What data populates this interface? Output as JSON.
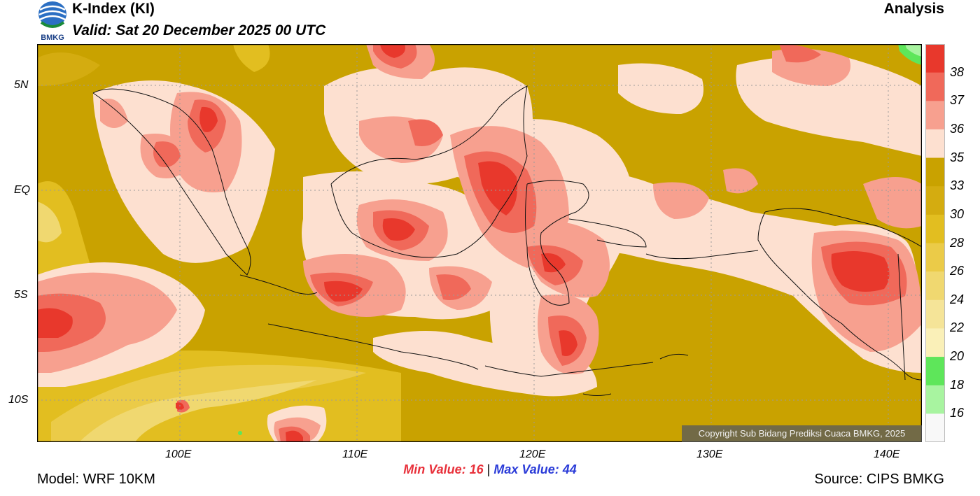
{
  "header": {
    "title": "K-Index (KI)",
    "valid": "Valid: Sat 20 December 2025 00 UTC",
    "analysis": "Analysis",
    "logo_text": "BMKG"
  },
  "map": {
    "lat_labels": [
      "5N",
      "EQ",
      "5S",
      "10S"
    ],
    "lon_labels": [
      "100E",
      "110E",
      "120E",
      "130E",
      "140E"
    ],
    "copyright": "Copyright Sub Bidang Prediksi Cuaca BMKG, 2025"
  },
  "stats": {
    "min_label": "Min Value:",
    "min_value": "16",
    "separator": "|",
    "max_label": "Max Value:",
    "max_value": "44"
  },
  "footer": {
    "model": "Model: WRF 10KM",
    "source": "Source: CIPS BMKG"
  },
  "legend": {
    "labels": [
      "38",
      "37",
      "36",
      "35",
      "33",
      "30",
      "28",
      "26",
      "24",
      "22",
      "20",
      "18",
      "16"
    ],
    "colors": [
      "#e8382c",
      "#f0695a",
      "#f7a08f",
      "#fde0d0",
      "#c9a200",
      "#d4ac10",
      "#e2be20",
      "#ebcb48",
      "#f0d870",
      "#f5e498",
      "#faf0b8",
      "#5ee65a",
      "#a8f4a0",
      "#f8f8f8"
    ]
  },
  "colors": {
    "map_base": "#c9a200",
    "pink": "#fde0d0",
    "salmon": "#f7a08f",
    "red": "#f0695a",
    "dark_red": "#e8382c",
    "pale_yellow": "#f0d870"
  }
}
